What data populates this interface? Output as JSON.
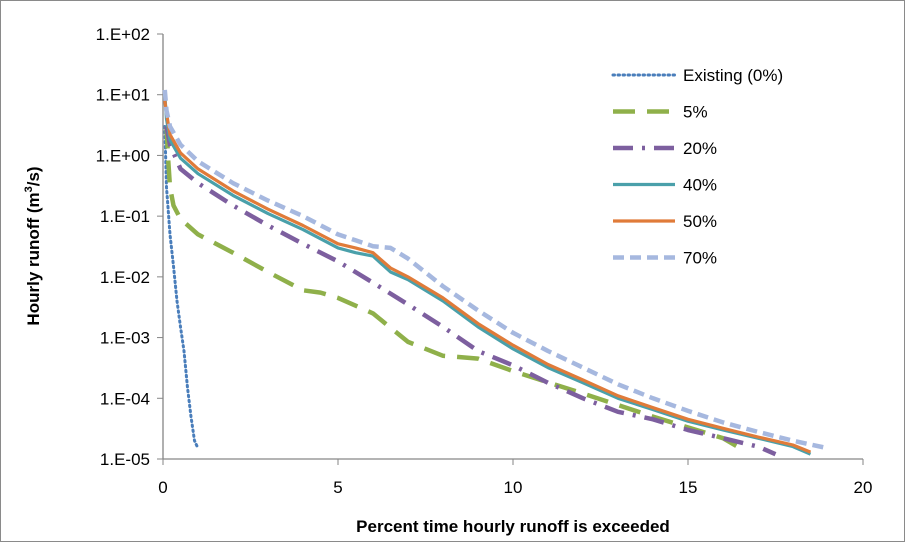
{
  "chart_data": {
    "type": "line",
    "title": "",
    "xlabel": "Percent time hourly runoff is exceeded",
    "ylabel": "Hourly runoff (m³/s)",
    "ylabel_parts": {
      "pre": "Hourly runoff (m",
      "sup": "3",
      "post": "/s)"
    },
    "xlim": [
      0,
      20
    ],
    "ylim": [
      1e-05,
      100
    ],
    "yscale": "log",
    "x_ticks": [
      0,
      5,
      10,
      15,
      20
    ],
    "x_tick_labels": [
      "0",
      "5",
      "10",
      "15",
      "20"
    ],
    "y_ticks": [
      100,
      10,
      1,
      0.1,
      0.01,
      0.001,
      0.0001,
      1e-05
    ],
    "y_tick_labels": [
      "1.E+02",
      "1.E+01",
      "1.E+00",
      "1.E-01",
      "1.E-02",
      "1.E-03",
      "1.E-04",
      "1.E-05"
    ],
    "grid": false,
    "legend_position": "top-right",
    "series": [
      {
        "name": "Existing (0%)",
        "color": "#4a7ebb",
        "dash": "dotted",
        "x": [
          0.05,
          0.1,
          0.2,
          0.3,
          0.4,
          0.5,
          0.6,
          0.7,
          0.8,
          0.9,
          1.0
        ],
        "y": [
          3.0,
          0.3,
          0.05,
          0.015,
          0.004,
          0.0015,
          0.0006,
          0.00015,
          5e-05,
          2e-05,
          1.5e-05
        ]
      },
      {
        "name": "5%",
        "color": "#8fb04a",
        "dash": "long-dash",
        "x": [
          0.1,
          0.15,
          0.2,
          0.3,
          0.5,
          1,
          2,
          3,
          4,
          4.5,
          5,
          6,
          7,
          8,
          9,
          10,
          12,
          14,
          16,
          16.5
        ],
        "y": [
          3.0,
          0.8,
          0.3,
          0.15,
          0.09,
          0.05,
          0.025,
          0.012,
          0.006,
          0.0055,
          0.0045,
          0.0025,
          0.00085,
          0.0005,
          0.00045,
          0.00028,
          0.00012,
          5e-05,
          2.2e-05,
          1.5e-05
        ]
      },
      {
        "name": "20%",
        "color": "#7d5f9f",
        "dash": "dash-dot",
        "x": [
          0.1,
          0.2,
          0.5,
          1,
          2,
          3,
          4,
          5,
          6,
          7,
          8,
          9,
          10,
          11,
          12,
          13,
          14,
          15,
          16,
          17,
          17.5
        ],
        "y": [
          3.0,
          1.5,
          0.6,
          0.35,
          0.15,
          0.07,
          0.035,
          0.018,
          0.008,
          0.0035,
          0.0015,
          0.0006,
          0.00035,
          0.00018,
          0.0001,
          6e-05,
          4.5e-05,
          3e-05,
          2.2e-05,
          1.6e-05,
          1.2e-05
        ]
      },
      {
        "name": "40%",
        "color": "#4aa0aa",
        "dash": "solid",
        "x": [
          0.05,
          0.1,
          0.2,
          0.5,
          1,
          2,
          3,
          4,
          5,
          5.5,
          6,
          6.5,
          7,
          8,
          9,
          10,
          11,
          12,
          13,
          14,
          15,
          16,
          17,
          18,
          18.5
        ],
        "y": [
          10.0,
          4.0,
          1.8,
          0.9,
          0.5,
          0.22,
          0.11,
          0.06,
          0.03,
          0.025,
          0.022,
          0.012,
          0.009,
          0.004,
          0.0015,
          0.00065,
          0.00032,
          0.00018,
          0.0001,
          6.5e-05,
          4.2e-05,
          3e-05,
          2.2e-05,
          1.6e-05,
          1.2e-05
        ]
      },
      {
        "name": "50%",
        "color": "#e07b39",
        "dash": "solid",
        "x": [
          0.05,
          0.1,
          0.2,
          0.5,
          1,
          2,
          3,
          4,
          5,
          5.5,
          6,
          6.5,
          7,
          8,
          9,
          10,
          11,
          12,
          13,
          14,
          15,
          16,
          17,
          18,
          18.5
        ],
        "y": [
          8.0,
          5.0,
          2.2,
          1.1,
          0.6,
          0.26,
          0.13,
          0.07,
          0.035,
          0.03,
          0.025,
          0.014,
          0.01,
          0.0045,
          0.0017,
          0.00075,
          0.00036,
          0.0002,
          0.00011,
          7e-05,
          4.5e-05,
          3.2e-05,
          2.3e-05,
          1.7e-05,
          1.3e-05
        ]
      },
      {
        "name": "70%",
        "color": "#a6b8df",
        "dash": "dashed",
        "x": [
          0.05,
          0.1,
          0.2,
          0.5,
          1,
          2,
          3,
          4,
          5,
          5.5,
          6,
          6.5,
          7,
          8,
          9,
          10,
          11,
          12,
          13,
          14,
          15,
          16,
          17,
          18,
          19
        ],
        "y": [
          12.0,
          5.5,
          3.0,
          1.5,
          0.8,
          0.35,
          0.18,
          0.1,
          0.05,
          0.04,
          0.032,
          0.03,
          0.02,
          0.007,
          0.0028,
          0.0012,
          0.0006,
          0.00032,
          0.00017,
          0.0001,
          6.2e-05,
          4e-05,
          2.8e-05,
          2e-05,
          1.5e-05
        ]
      }
    ]
  }
}
